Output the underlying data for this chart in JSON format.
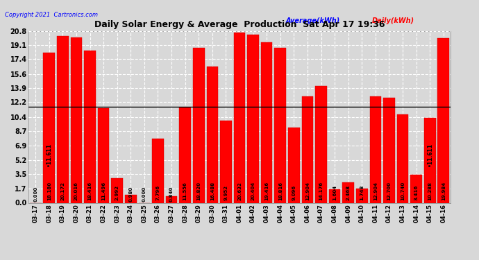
{
  "title": "Daily Solar Energy & Average  Production  Sat Apr 17 19:36",
  "copyright": "Copyright 2021  Cartronics.com",
  "categories": [
    "03-17",
    "03-18",
    "03-19",
    "03-20",
    "03-21",
    "03-22",
    "03-23",
    "03-24",
    "03-25",
    "03-26",
    "03-27",
    "03-28",
    "03-29",
    "03-30",
    "03-31",
    "04-01",
    "04-02",
    "04-03",
    "04-04",
    "04-05",
    "04-06",
    "04-07",
    "04-08",
    "04-09",
    "04-10",
    "04-11",
    "04-12",
    "04-13",
    "04-14",
    "04-15",
    "04-16"
  ],
  "values": [
    0.0,
    18.18,
    20.172,
    20.016,
    18.416,
    11.496,
    2.992,
    0.98,
    0.0,
    7.796,
    0.84,
    11.556,
    18.82,
    16.488,
    9.952,
    20.632,
    20.404,
    19.416,
    18.816,
    9.096,
    12.904,
    14.176,
    1.604,
    2.468,
    1.748,
    12.904,
    12.7,
    10.74,
    3.416,
    10.288,
    19.984
  ],
  "average": 11.611,
  "bar_color": "#ff0000",
  "average_color": "#0000ff",
  "yticks": [
    0.0,
    1.7,
    3.5,
    5.2,
    6.9,
    8.7,
    10.4,
    12.2,
    13.9,
    15.6,
    17.4,
    19.1,
    20.8
  ],
  "ylim": [
    0.0,
    20.8
  ],
  "bg_color": "#d8d8d8",
  "plot_bg": "#d8d8d8",
  "grid_color": "#ffffff",
  "bar_edge_color": "#cc0000",
  "label_avg": "Average(kWh)",
  "label_daily": "Daily(kWh)",
  "avg_label_color": "#0000ff",
  "daily_label_color": "#ff0000",
  "avg_label_value": "•11.611"
}
